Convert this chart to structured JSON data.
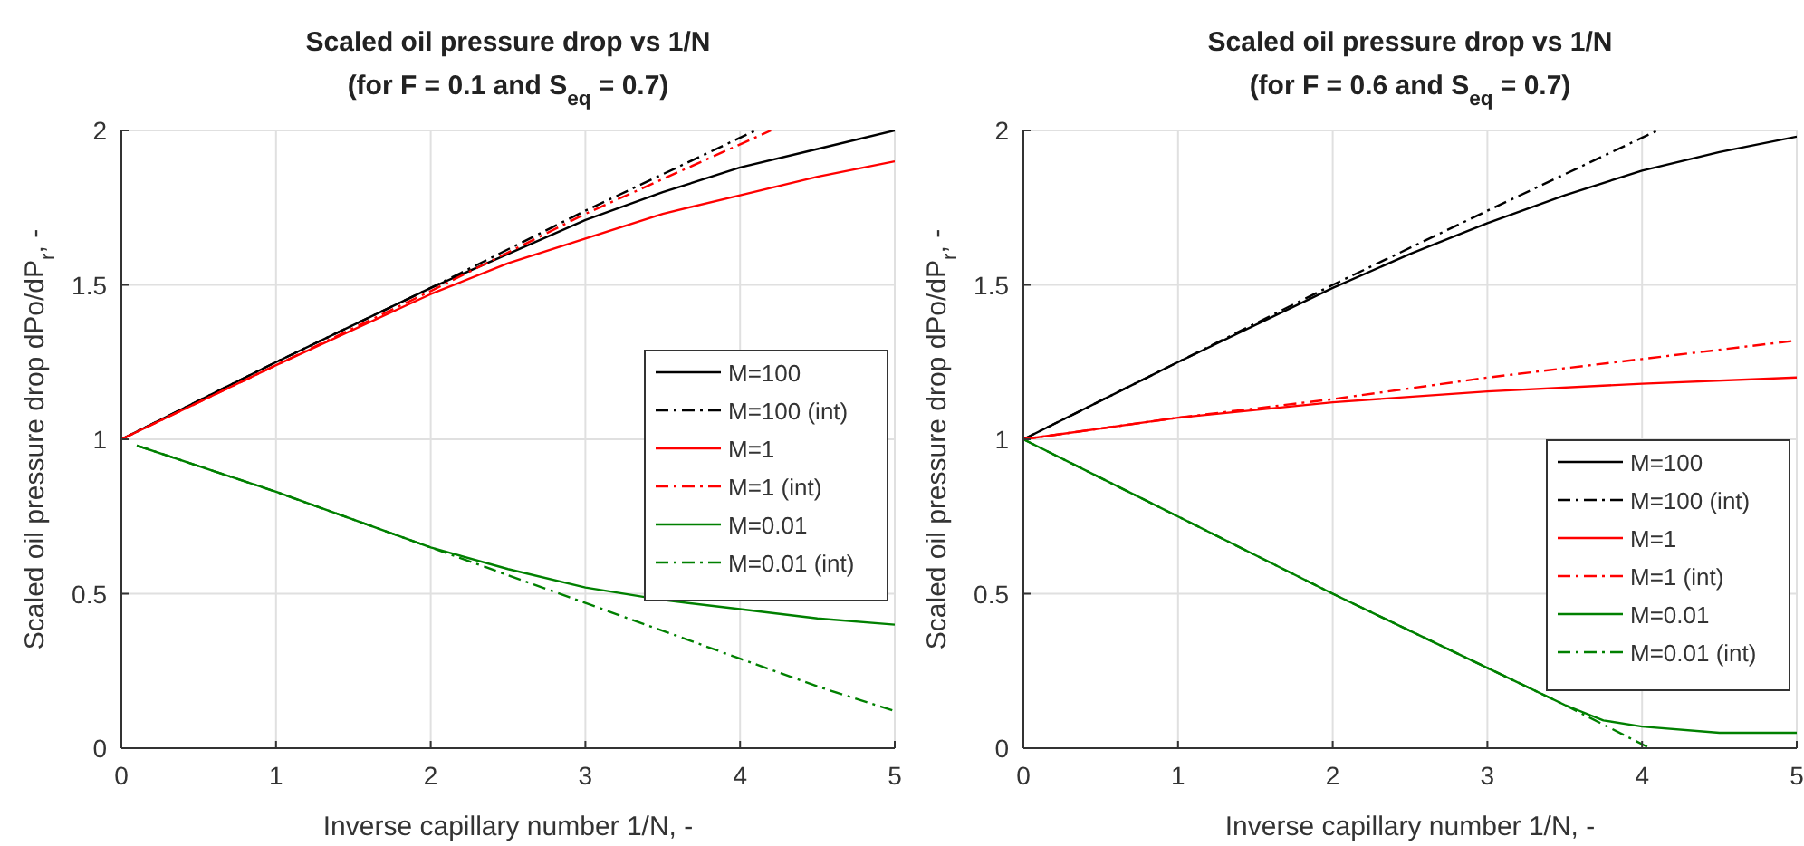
{
  "chart_data": [
    {
      "type": "line",
      "title": "Scaled oil pressure drop vs 1/N",
      "subtitle": "(for F = 0.1 and S$_{eq}$ = 0.7)",
      "xlabel": "Inverse capillary number 1/N, -",
      "ylabel": "Scaled oil pressure drop dPo/dP$_{r}$, -",
      "xlim": [
        0,
        5
      ],
      "ylim": [
        0,
        2
      ],
      "xticks": [
        0,
        1,
        2,
        3,
        4,
        5
      ],
      "yticks": [
        0,
        0.5,
        1,
        1.5,
        2
      ],
      "grid": true,
      "legend": "right",
      "series": [
        {
          "name": "M=100",
          "color": "#000000",
          "line_style": "solid",
          "x": [
            0,
            1,
            2,
            2.5,
            3,
            3.5,
            4,
            4.5,
            5
          ],
          "values": [
            1,
            1.25,
            1.49,
            1.6,
            1.71,
            1.8,
            1.88,
            1.94,
            2.0
          ]
        },
        {
          "name": "M=100 (int)",
          "color": "#000000",
          "line_style": "dashdot",
          "x": [
            0,
            1,
            2,
            3,
            4.1
          ],
          "values": [
            1,
            1.25,
            1.49,
            1.74,
            2.0
          ]
        },
        {
          "name": "M=1",
          "color": "#ff0000",
          "line_style": "solid",
          "x": [
            0,
            1,
            2,
            2.5,
            3,
            3.5,
            4,
            4.5,
            5
          ],
          "values": [
            1,
            1.24,
            1.47,
            1.57,
            1.65,
            1.73,
            1.79,
            1.85,
            1.9
          ]
        },
        {
          "name": "M=1 (int)",
          "color": "#ff0000",
          "line_style": "dashdot",
          "x": [
            0,
            1,
            2,
            3,
            4.2
          ],
          "values": [
            1,
            1.24,
            1.48,
            1.73,
            2.0
          ]
        },
        {
          "name": "M=0.01",
          "color": "#008000",
          "line_style": "solid",
          "x": [
            0.1,
            1,
            2,
            2.5,
            3,
            3.5,
            4,
            4.5,
            5
          ],
          "values": [
            0.98,
            0.83,
            0.65,
            0.58,
            0.52,
            0.48,
            0.45,
            0.42,
            0.4
          ]
        },
        {
          "name": "M=0.01 (int)",
          "color": "#008000",
          "line_style": "dashdot",
          "x": [
            0.1,
            1,
            2,
            2.5,
            3,
            3.5,
            4,
            4.5,
            5
          ],
          "values": [
            0.98,
            0.83,
            0.65,
            0.56,
            0.47,
            0.38,
            0.29,
            0.2,
            0.12
          ]
        }
      ]
    },
    {
      "type": "line",
      "title": "Scaled oil pressure drop vs 1/N",
      "subtitle": "(for F = 0.6 and S$_{eq}$ = 0.7)",
      "xlabel": "Inverse capillary number 1/N, -",
      "ylabel": "Scaled oil pressure drop dPo/dP$_{r}$, -",
      "xlim": [
        0,
        5
      ],
      "ylim": [
        0,
        2
      ],
      "xticks": [
        0,
        1,
        2,
        3,
        4,
        5
      ],
      "yticks": [
        0,
        0.5,
        1,
        1.5,
        2
      ],
      "grid": true,
      "legend": "bottom right",
      "series": [
        {
          "name": "M=100",
          "color": "#000000",
          "line_style": "solid",
          "x": [
            0,
            1,
            2,
            2.5,
            3,
            3.5,
            4,
            4.5,
            5
          ],
          "values": [
            1,
            1.25,
            1.49,
            1.6,
            1.7,
            1.79,
            1.87,
            1.93,
            1.98
          ]
        },
        {
          "name": "M=100 (int)",
          "color": "#000000",
          "line_style": "dashdot",
          "x": [
            0,
            1,
            2,
            3,
            4.1
          ],
          "values": [
            1,
            1.25,
            1.5,
            1.74,
            2.0
          ]
        },
        {
          "name": "M=1",
          "color": "#ff0000",
          "line_style": "solid",
          "x": [
            0,
            1,
            2,
            3,
            4,
            5
          ],
          "values": [
            1,
            1.07,
            1.12,
            1.155,
            1.18,
            1.2
          ]
        },
        {
          "name": "M=1 (int)",
          "color": "#ff0000",
          "line_style": "dashdot",
          "x": [
            0,
            1,
            2,
            3,
            4,
            5
          ],
          "values": [
            1,
            1.07,
            1.13,
            1.2,
            1.26,
            1.32
          ]
        },
        {
          "name": "M=0.01",
          "color": "#008000",
          "line_style": "solid",
          "x": [
            0,
            1,
            2,
            3,
            3.5,
            3.75,
            4,
            4.5,
            5
          ],
          "values": [
            1,
            0.75,
            0.5,
            0.26,
            0.14,
            0.09,
            0.07,
            0.05,
            0.05
          ]
        },
        {
          "name": "M=0.01 (int)",
          "color": "#008000",
          "line_style": "dashdot",
          "x": [
            0,
            1,
            2,
            3,
            3.5,
            4.05
          ],
          "values": [
            1,
            0.75,
            0.5,
            0.26,
            0.14,
            0
          ]
        }
      ]
    }
  ]
}
